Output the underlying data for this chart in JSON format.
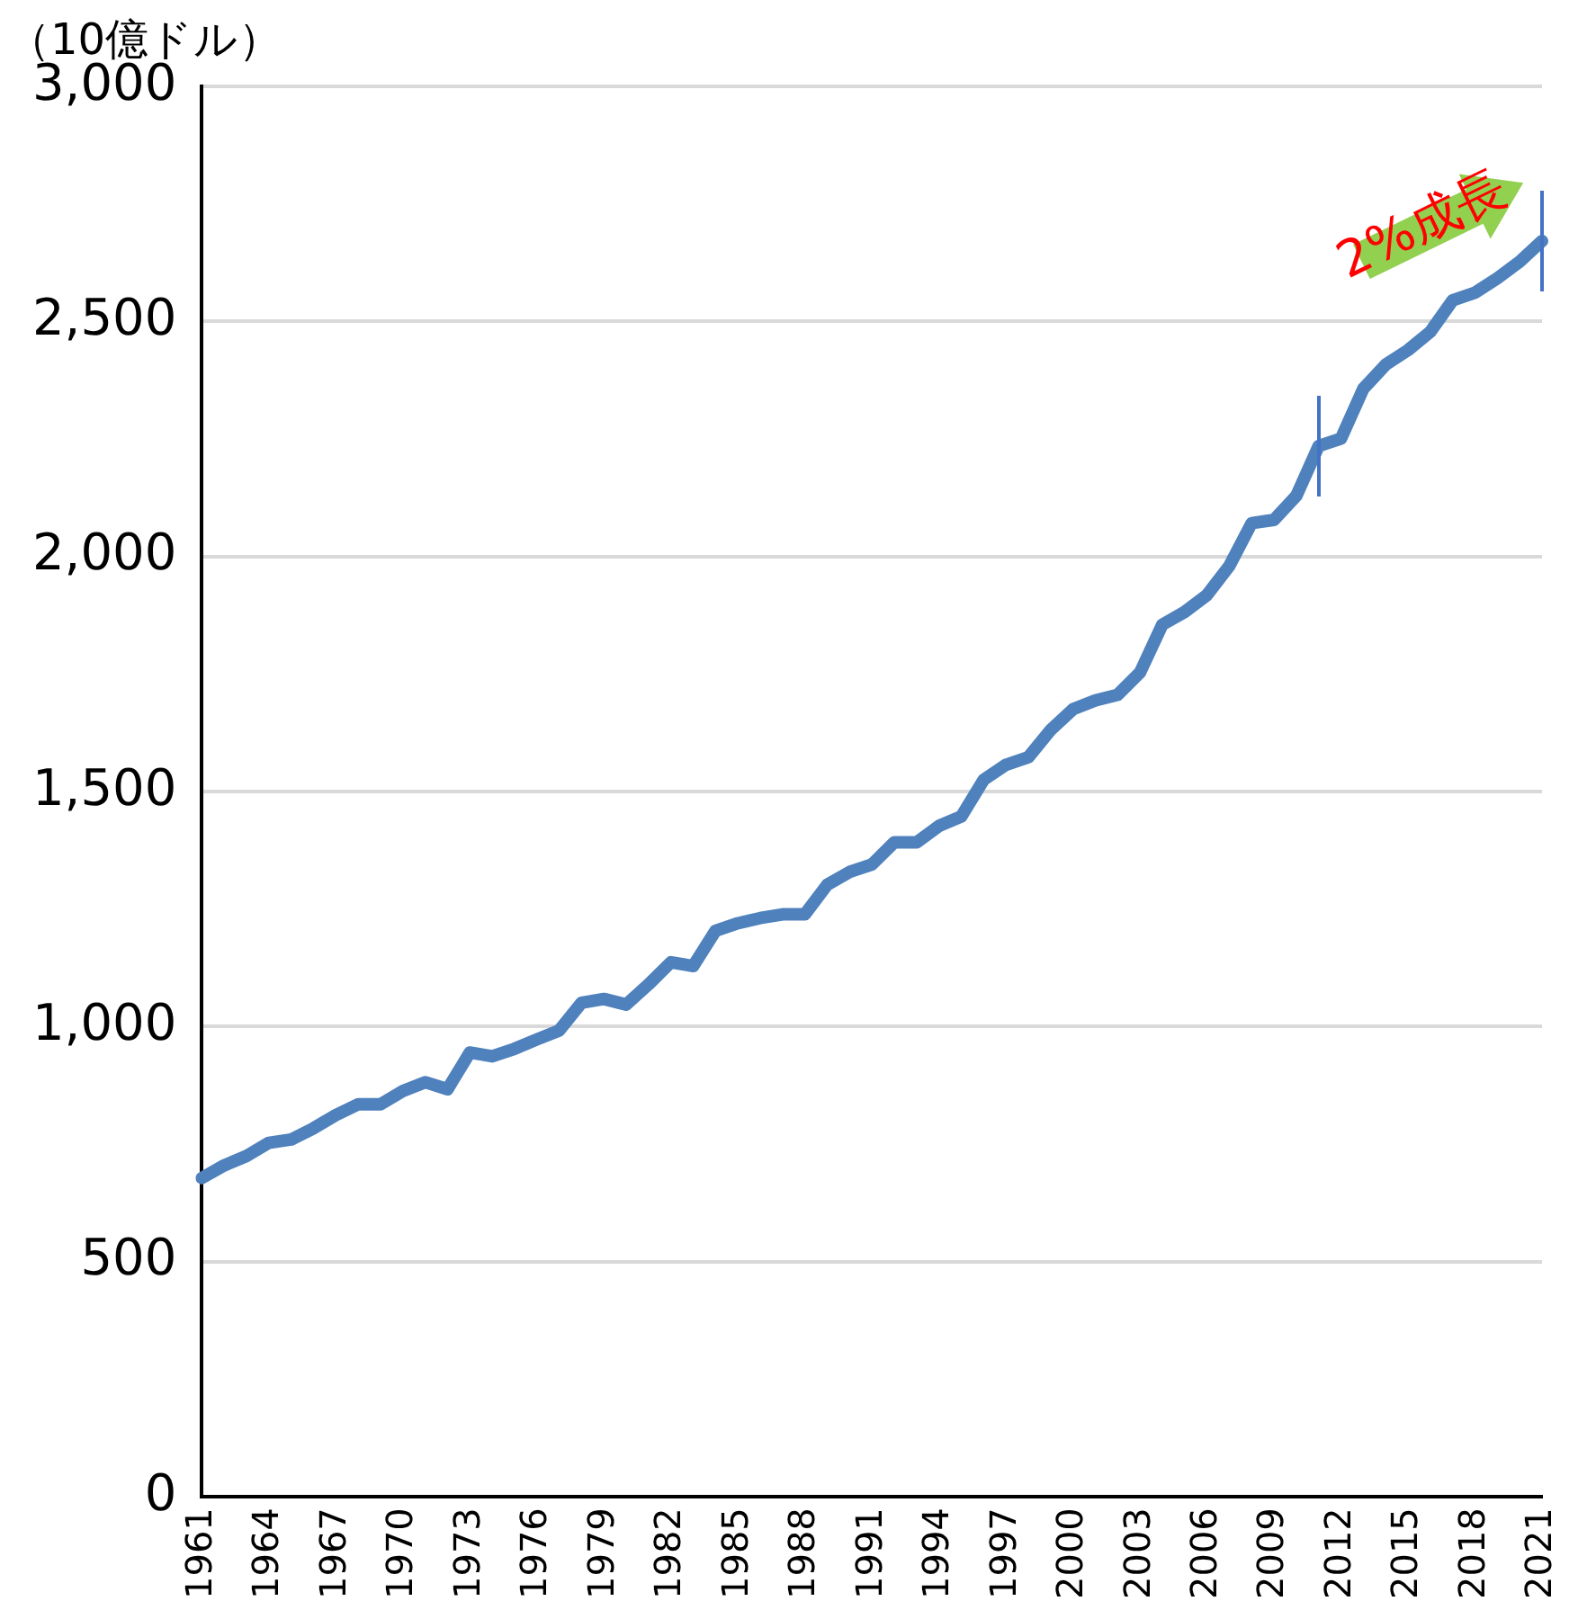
{
  "chart_data": {
    "type": "line",
    "ylabel": "（10億ドル）",
    "categories": [
      "1961",
      null,
      null,
      "1964",
      null,
      null,
      "1967",
      null,
      null,
      "1970",
      null,
      null,
      "1973",
      null,
      null,
      "1976",
      null,
      null,
      "1979",
      null,
      null,
      "1982",
      null,
      null,
      "1985",
      null,
      null,
      "1988",
      null,
      null,
      "1991",
      null,
      null,
      "1994",
      null,
      null,
      "1997",
      null,
      null,
      "2000",
      null,
      null,
      "2003",
      null,
      null,
      "2006",
      null,
      null,
      "2009",
      null,
      null,
      "2012",
      null,
      null,
      "2015",
      null,
      null,
      "2018",
      null,
      null,
      "2021"
    ],
    "series": [
      {
        "color": "#4f81bd",
        "values": [
          678,
          705,
          725,
          753,
          760,
          784,
          812,
          835,
          835,
          863,
          882,
          867,
          945,
          937,
          953,
          973,
          992,
          1051,
          1059,
          1047,
          1090,
          1137,
          1129,
          1204,
          1220,
          1231,
          1239,
          1239,
          1302,
          1329,
          1345,
          1392,
          1392,
          1427,
          1447,
          1525,
          1557,
          1573,
          1631,
          1675,
          1694,
          1706,
          1753,
          1855,
          1882,
          1918,
          1980,
          2071,
          2078,
          2129,
          2235,
          2251,
          2357,
          2408,
          2439,
          2478,
          2545,
          2561,
          2592,
          2627,
          2671
        ]
      }
    ],
    "ylim": [
      0,
      3000
    ],
    "yticks": [
      {
        "value": 0,
        "label": "0"
      },
      {
        "value": 500,
        "label": "500"
      },
      {
        "value": 1000,
        "label": "1,000"
      },
      {
        "value": 1500,
        "label": "1,500"
      },
      {
        "value": 2000,
        "label": "2,000"
      },
      {
        "value": 2500,
        "label": "2,500"
      },
      {
        "value": 3000,
        "label": "3,000"
      }
    ],
    "grid": "y",
    "legend": false,
    "marker": "none",
    "line_style": "solid",
    "annotations": [
      "2%成長"
    ]
  }
}
